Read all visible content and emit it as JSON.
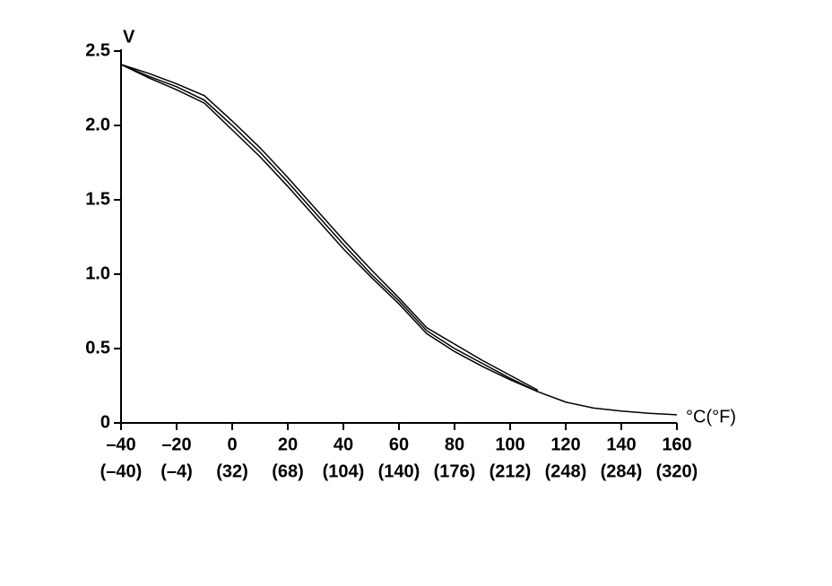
{
  "chart_data": {
    "type": "line",
    "y_label": "V",
    "x_label": "°C(°F)",
    "x": [
      -40,
      -30,
      -20,
      -10,
      0,
      10,
      20,
      30,
      40,
      50,
      60,
      70,
      80,
      90,
      100,
      110,
      120,
      130,
      140,
      150,
      160
    ],
    "series": [
      {
        "color": "#000000",
        "values": [
          2.41,
          2.33,
          2.26,
          2.17,
          2.0,
          1.82,
          1.62,
          1.41,
          1.2,
          1.0,
          0.82,
          0.62,
          0.5,
          0.4,
          0.3,
          0.21,
          0.14,
          0.1,
          0.08,
          0.065,
          0.055
        ]
      },
      {
        "color": "#000000",
        "values": [
          2.41,
          2.35,
          2.28,
          2.2,
          2.03,
          1.85,
          1.65,
          1.44,
          1.23,
          1.03,
          0.84,
          0.64,
          0.53,
          0.42,
          0.32,
          0.22,
          null,
          null,
          null,
          null,
          null
        ]
      },
      {
        "color": "#000000",
        "values": [
          2.41,
          2.32,
          2.24,
          2.15,
          1.97,
          1.79,
          1.59,
          1.38,
          1.17,
          0.98,
          0.8,
          0.6,
          0.48,
          0.38,
          0.29,
          0.21,
          null,
          null,
          null,
          null,
          null
        ]
      }
    ],
    "xlim": [
      -40,
      160
    ],
    "xticks": [
      {
        "value": -40,
        "label": "–40"
      },
      {
        "value": -20,
        "label": "–20"
      },
      0,
      20,
      40,
      60,
      80,
      100,
      120,
      140,
      160
    ],
    "xtick_fahrenheit_labels": [
      "(–40)",
      "(–4)",
      "(32)",
      "(68)",
      "(104)",
      "(140)",
      "(176)",
      "(212)",
      "(248)",
      "(284)",
      "(320)"
    ],
    "ylim": [
      0,
      2.5
    ],
    "yticks": [
      0,
      0.5,
      {
        "value": 1,
        "label": "1.0"
      },
      1.5,
      {
        "value": 2,
        "label": "2.0"
      },
      2.5
    ],
    "grid": false
  }
}
